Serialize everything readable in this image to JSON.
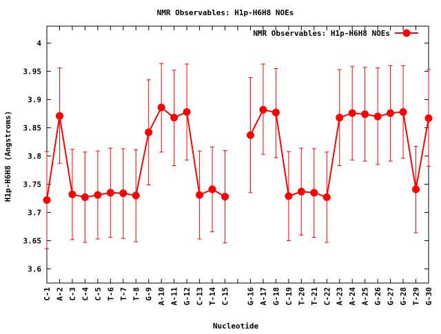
{
  "chart_data": {
    "type": "line",
    "title": "NMR Observables: H1p-H6H8 NOEs",
    "xlabel": "Nucleotide",
    "ylabel": "H1p-H6H8 (Angstroms)",
    "ylim": [
      3.575,
      4.03
    ],
    "yticks": [
      3.6,
      3.65,
      3.7,
      3.75,
      3.8,
      3.85,
      3.9,
      3.95,
      4
    ],
    "ytick_labels": [
      "3.6",
      "3.65",
      "3.7",
      "3.75",
      "3.8",
      "3.85",
      "3.9",
      "3.95",
      "4"
    ],
    "grid": false,
    "legend_position": "top-right",
    "categories": [
      "C-1",
      "A-2",
      "C-3",
      "C-4",
      "C-5",
      "T-6",
      "T-7",
      "T-8",
      "G-9",
      "A-10",
      "A-11",
      "G-12",
      "C-13",
      "T-14",
      "C-15",
      "",
      "G-16",
      "A-17",
      "G-18",
      "C-19",
      "T-20",
      "T-21",
      "C-22",
      "A-23",
      "A-24",
      "A-25",
      "G-26",
      "G-27",
      "G-28",
      "T-29",
      "G-30"
    ],
    "series": [
      {
        "name": "NMR Observables: H1p-H6H8 NOEs",
        "color": "#ff0000",
        "values": [
          3.722,
          3.871,
          3.732,
          3.727,
          3.731,
          3.735,
          3.734,
          3.73,
          3.842,
          3.886,
          3.868,
          3.878,
          3.731,
          3.741,
          3.728,
          null,
          3.837,
          3.882,
          3.877,
          3.729,
          3.737,
          3.735,
          3.727,
          3.868,
          3.876,
          3.874,
          3.87,
          3.876,
          3.878,
          3.741,
          3.867
        ],
        "err_low": [
          3.636,
          3.787,
          3.652,
          3.647,
          3.653,
          3.656,
          3.654,
          3.648,
          3.749,
          3.807,
          3.783,
          3.793,
          3.653,
          3.666,
          3.646,
          null,
          3.735,
          3.803,
          3.797,
          3.65,
          3.66,
          3.656,
          3.647,
          3.783,
          3.793,
          3.791,
          3.785,
          3.791,
          3.796,
          3.664,
          3.782
        ],
        "err_high": [
          3.808,
          3.956,
          3.812,
          3.807,
          3.809,
          3.814,
          3.813,
          3.811,
          3.935,
          3.964,
          3.952,
          3.963,
          3.809,
          3.816,
          3.81,
          null,
          3.939,
          3.963,
          3.955,
          3.808,
          3.814,
          3.813,
          3.807,
          3.953,
          3.959,
          3.957,
          3.956,
          3.96,
          3.96,
          3.817,
          3.953
        ]
      }
    ]
  }
}
